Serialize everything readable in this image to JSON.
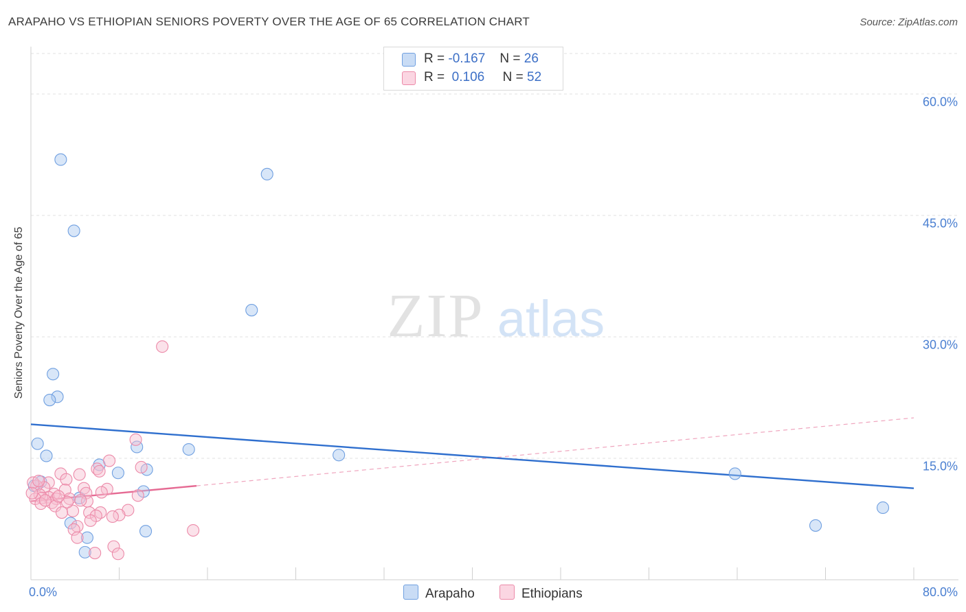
{
  "chart_data": {
    "type": "scatter",
    "title": "ARAPAHO VS ETHIOPIAN SENIORS POVERTY OVER THE AGE OF 65 CORRELATION CHART",
    "source": "Source: ZipAtlas.com",
    "watermark": {
      "zip": "ZIP",
      "atlas": "atlas"
    },
    "xlabel": "",
    "ylabel": "Seniors Poverty Over the Age of 65",
    "xlim": [
      0,
      80
    ],
    "ylim": [
      0,
      65
    ],
    "x_tick_labels": {
      "min": "0.0%",
      "max": "80.0%"
    },
    "y_ticks": [
      {
        "value": 15,
        "label": "15.0%"
      },
      {
        "value": 30,
        "label": "30.0%"
      },
      {
        "value": 45,
        "label": "45.0%"
      },
      {
        "value": 60,
        "label": "60.0%"
      }
    ],
    "grid": true,
    "legend_stats": [
      {
        "r_label": "R =",
        "r_value": "-0.167",
        "n_label": "N =",
        "n_value": "26",
        "color": "#a9c8f0",
        "border": "#6f9fe0"
      },
      {
        "r_label": "R =",
        "r_value": "0.106",
        "n_label": "N =",
        "n_value": "52",
        "color": "#f7bed0",
        "border": "#ec89a8"
      }
    ],
    "series": [
      {
        "name": "Arapaho",
        "color": "#a9c8f0",
        "stroke": "#6f9fe0",
        "trend": {
          "x": [
            0,
            80
          ],
          "y": [
            19.2,
            11.3
          ],
          "color": "#2f6fce"
        },
        "points": [
          [
            2.7,
            51.9
          ],
          [
            3.9,
            43.1
          ],
          [
            21.4,
            50.1
          ],
          [
            20.0,
            33.3
          ],
          [
            2.0,
            25.4
          ],
          [
            2.4,
            22.6
          ],
          [
            1.7,
            22.2
          ],
          [
            0.6,
            16.8
          ],
          [
            1.4,
            15.3
          ],
          [
            9.6,
            16.4
          ],
          [
            14.3,
            16.1
          ],
          [
            27.9,
            15.4
          ],
          [
            6.2,
            14.2
          ],
          [
            7.9,
            13.2
          ],
          [
            10.5,
            13.6
          ],
          [
            0.9,
            12.1
          ],
          [
            10.2,
            10.9
          ],
          [
            4.4,
            10.1
          ],
          [
            63.8,
            13.1
          ],
          [
            77.2,
            8.9
          ],
          [
            71.1,
            6.7
          ],
          [
            3.6,
            7.0
          ],
          [
            10.4,
            6.0
          ],
          [
            5.1,
            5.2
          ],
          [
            4.9,
            3.4
          ],
          [
            0.3,
            11.6
          ]
        ]
      },
      {
        "name": "Ethiopians",
        "color": "#f7bed0",
        "stroke": "#ec89a8",
        "trend": {
          "x": [
            0,
            15
          ],
          "y": [
            9.7,
            11.6
          ],
          "color": "#e56a93"
        },
        "trend_ext": {
          "x": [
            15,
            80
          ],
          "y": [
            11.6,
            20.0
          ],
          "color": "#efa4bd"
        },
        "points": [
          [
            11.9,
            28.8
          ],
          [
            9.5,
            17.3
          ],
          [
            7.1,
            14.7
          ],
          [
            6.0,
            13.7
          ],
          [
            6.2,
            13.4
          ],
          [
            10.0,
            13.9
          ],
          [
            2.7,
            13.1
          ],
          [
            3.2,
            12.4
          ],
          [
            4.4,
            13.0
          ],
          [
            1.6,
            12.0
          ],
          [
            1.2,
            11.4
          ],
          [
            0.5,
            11.6
          ],
          [
            0.2,
            12.0
          ],
          [
            3.1,
            11.1
          ],
          [
            4.8,
            11.3
          ],
          [
            6.9,
            11.2
          ],
          [
            5.0,
            10.7
          ],
          [
            2.1,
            10.6
          ],
          [
            1.6,
            10.2
          ],
          [
            0.8,
            10.5
          ],
          [
            1.0,
            10.1
          ],
          [
            2.3,
            10.0
          ],
          [
            3.5,
            10.0
          ],
          [
            0.4,
            10.0
          ],
          [
            5.1,
            9.7
          ],
          [
            1.9,
            9.5
          ],
          [
            0.9,
            9.4
          ],
          [
            2.2,
            9.1
          ],
          [
            3.8,
            8.5
          ],
          [
            6.3,
            8.3
          ],
          [
            8.8,
            8.6
          ],
          [
            5.3,
            8.3
          ],
          [
            8.0,
            8.0
          ],
          [
            2.8,
            8.3
          ],
          [
            5.9,
            7.9
          ],
          [
            7.4,
            7.8
          ],
          [
            5.4,
            7.3
          ],
          [
            4.2,
            6.6
          ],
          [
            3.9,
            6.2
          ],
          [
            4.2,
            5.2
          ],
          [
            14.7,
            6.1
          ],
          [
            7.5,
            4.1
          ],
          [
            7.9,
            3.2
          ],
          [
            5.8,
            3.3
          ],
          [
            0.1,
            10.7
          ],
          [
            0.7,
            12.2
          ],
          [
            1.3,
            9.8
          ],
          [
            9.7,
            10.4
          ],
          [
            4.5,
            9.8
          ],
          [
            6.4,
            10.8
          ],
          [
            3.3,
            9.6
          ],
          [
            2.5,
            10.3
          ]
        ]
      }
    ]
  }
}
